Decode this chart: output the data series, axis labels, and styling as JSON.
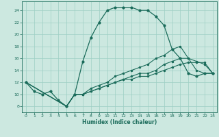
{
  "xlabel": "Humidex (Indice chaleur)",
  "xlim": [
    -0.5,
    23.5
  ],
  "ylim": [
    7,
    25.5
  ],
  "xticks": [
    0,
    1,
    2,
    3,
    4,
    5,
    6,
    7,
    8,
    9,
    10,
    11,
    12,
    13,
    14,
    15,
    16,
    17,
    18,
    19,
    20,
    21,
    22,
    23
  ],
  "yticks": [
    8,
    10,
    12,
    14,
    16,
    18,
    20,
    22,
    24
  ],
  "background_color": "#cce8e0",
  "grid_color": "#9ecfc4",
  "line_color": "#1a6b5a",
  "line1_x": [
    0,
    1,
    2,
    3,
    4,
    5,
    6,
    7,
    8,
    9,
    10,
    11,
    12,
    13,
    14,
    15,
    16,
    17,
    18,
    19,
    20,
    21,
    22,
    23
  ],
  "line1_y": [
    12,
    10.5,
    10,
    10.5,
    9,
    8,
    10,
    15.5,
    19.5,
    22,
    24,
    24.5,
    24.5,
    24.5,
    24,
    24,
    23,
    21.5,
    17.5,
    16,
    13.5,
    13,
    13.5,
    13.5
  ],
  "line2_x": [
    0,
    5,
    6,
    7,
    8,
    9,
    10,
    11,
    12,
    13,
    14,
    15,
    16,
    17,
    18,
    19,
    20,
    21,
    22,
    23
  ],
  "line2_y": [
    12,
    8,
    10,
    10,
    10.5,
    11,
    11.5,
    12,
    12.5,
    12.5,
    13,
    13,
    13.5,
    14,
    14.5,
    15,
    15.3,
    15.3,
    15.3,
    13.5
  ],
  "line3_x": [
    0,
    5,
    6,
    7,
    8,
    9,
    10,
    11,
    12,
    13,
    14,
    15,
    16,
    17,
    18,
    19,
    20,
    21,
    22,
    23
  ],
  "line3_y": [
    12,
    8,
    10,
    10,
    11,
    11.5,
    12,
    13,
    13.5,
    14,
    14.5,
    15,
    16,
    16.5,
    17.5,
    18,
    16,
    14,
    13.5,
    13.5
  ],
  "line4_x": [
    0,
    5,
    6,
    7,
    8,
    9,
    10,
    11,
    12,
    13,
    14,
    15,
    16,
    17,
    18,
    19,
    20,
    21,
    22,
    23
  ],
  "line4_y": [
    12,
    8,
    10,
    10,
    10.5,
    11,
    11.5,
    12,
    12.5,
    13,
    13.5,
    13.5,
    14,
    15,
    15.5,
    16,
    16,
    15.5,
    15,
    13.5
  ]
}
